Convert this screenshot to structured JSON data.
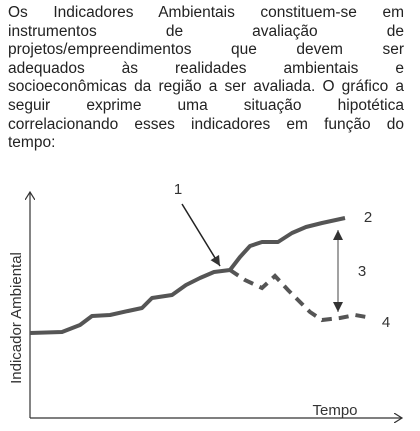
{
  "paragraph": {
    "lines": [
      "Os Indicadores Ambientais constituem-se em",
      "instrumentos de avaliação de",
      "projetos/empreendimentos que devem ser",
      "adequados às realidades ambientais e",
      "socioeconômicas da região a ser avaliada. O gráfico a",
      "seguir exprime uma situação hipotética",
      "correlacionando esses indicadores em função do",
      "tempo:"
    ]
  },
  "figure": {
    "y_axis_label": "Indicador Ambiental",
    "x_axis_label": "Tempo",
    "labels": [
      "1",
      "2",
      "3",
      "4"
    ]
  }
}
